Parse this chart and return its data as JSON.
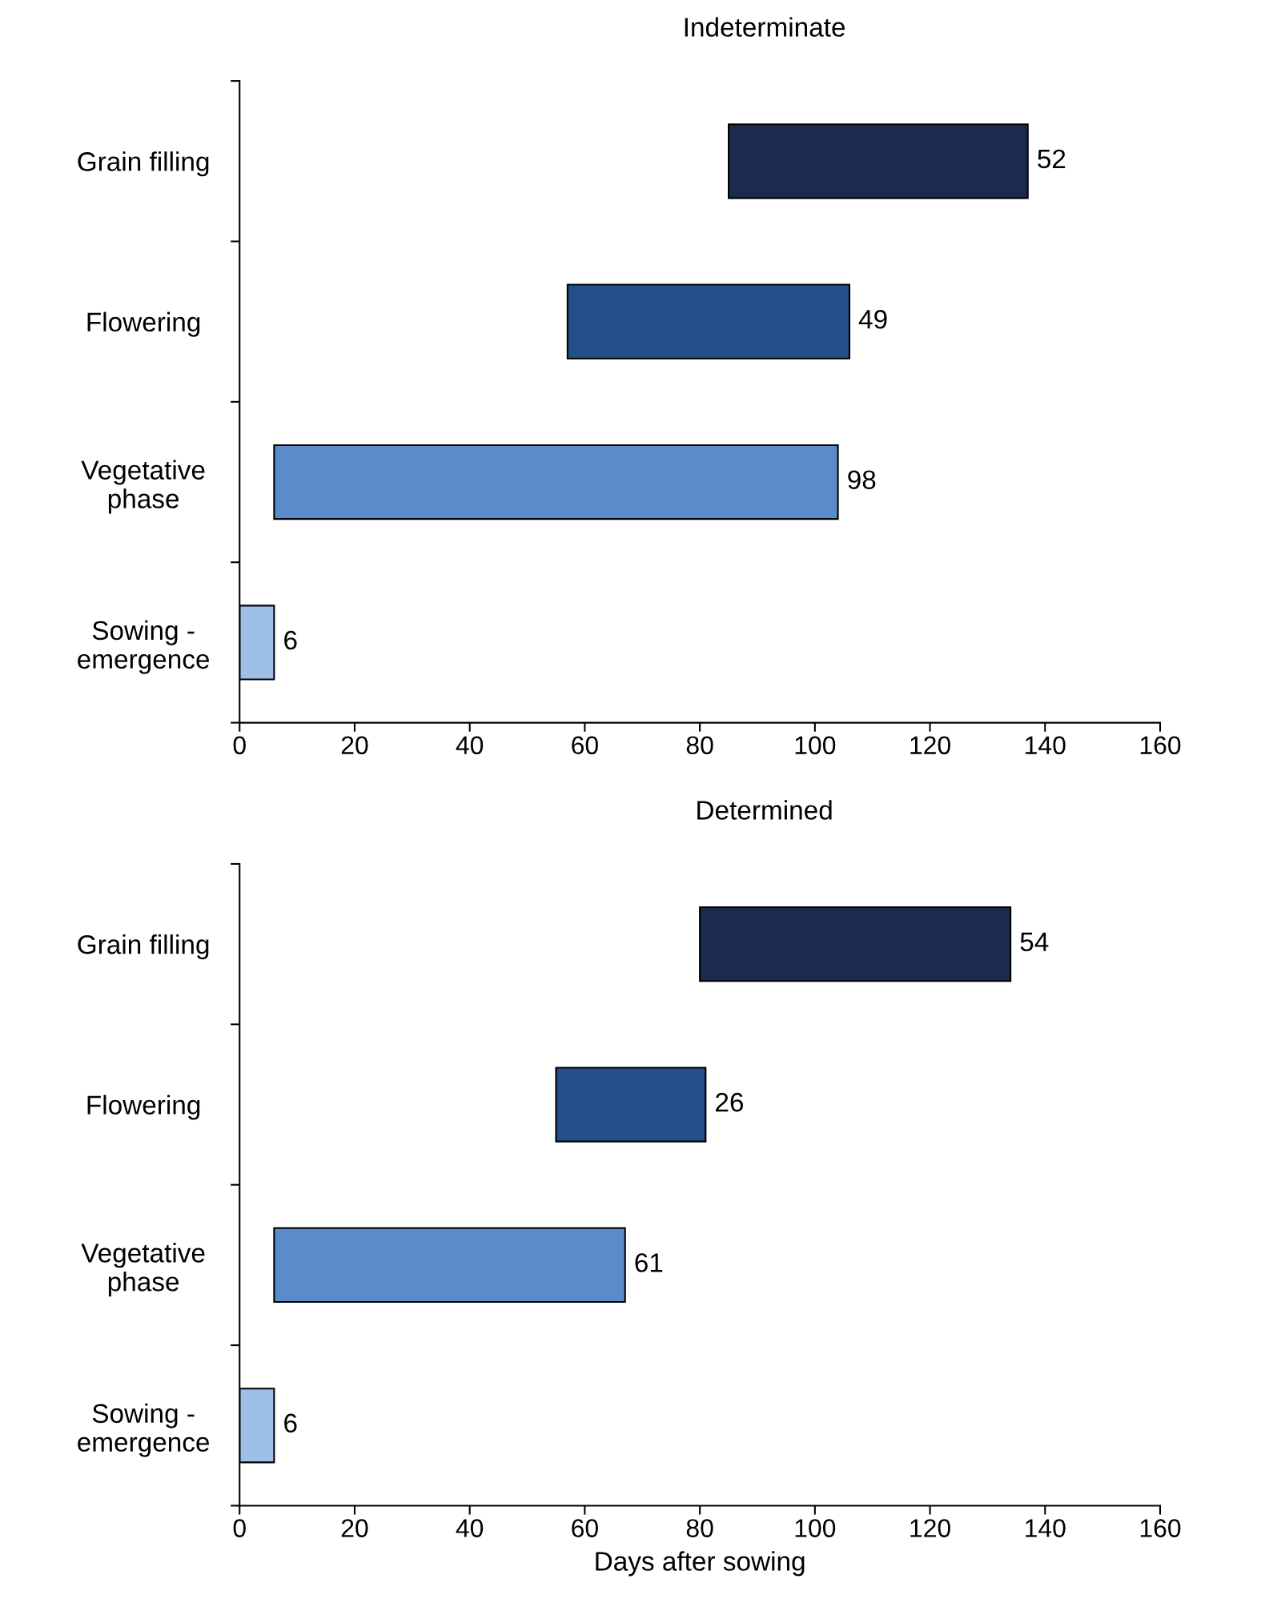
{
  "chart_data": [
    {
      "type": "bar",
      "orientation": "horizontal",
      "title": "Indeterminate",
      "categories": [
        "Grain filling",
        "Flowering",
        "Vegetative\nphase",
        "Sowing -\nemergence"
      ],
      "values": [
        52,
        49,
        98,
        6
      ],
      "base": [
        85,
        57,
        6,
        0
      ],
      "colors": [
        "#1b2a4e",
        "#24508a",
        "#5a8cca",
        "#9dbfe8"
      ],
      "xlim": [
        0,
        160
      ],
      "xticks": [
        0,
        20,
        40,
        60,
        80,
        100,
        120,
        140,
        160
      ],
      "data_labels": true,
      "grid": false,
      "legend": false
    },
    {
      "type": "bar",
      "orientation": "horizontal",
      "title": "Determined",
      "xlabel": "Days after sowing",
      "categories": [
        "Grain filling",
        "Flowering",
        "Vegetative\nphase",
        "Sowing -\nemergence"
      ],
      "values": [
        54,
        26,
        61,
        6
      ],
      "base": [
        80,
        55,
        6,
        0
      ],
      "colors": [
        "#1b2a4e",
        "#24508a",
        "#5a8cca",
        "#9dbfe8"
      ],
      "xlim": [
        0,
        160
      ],
      "xticks": [
        0,
        20,
        40,
        60,
        80,
        100,
        120,
        140,
        160
      ],
      "data_labels": true,
      "grid": false,
      "legend": false
    }
  ]
}
